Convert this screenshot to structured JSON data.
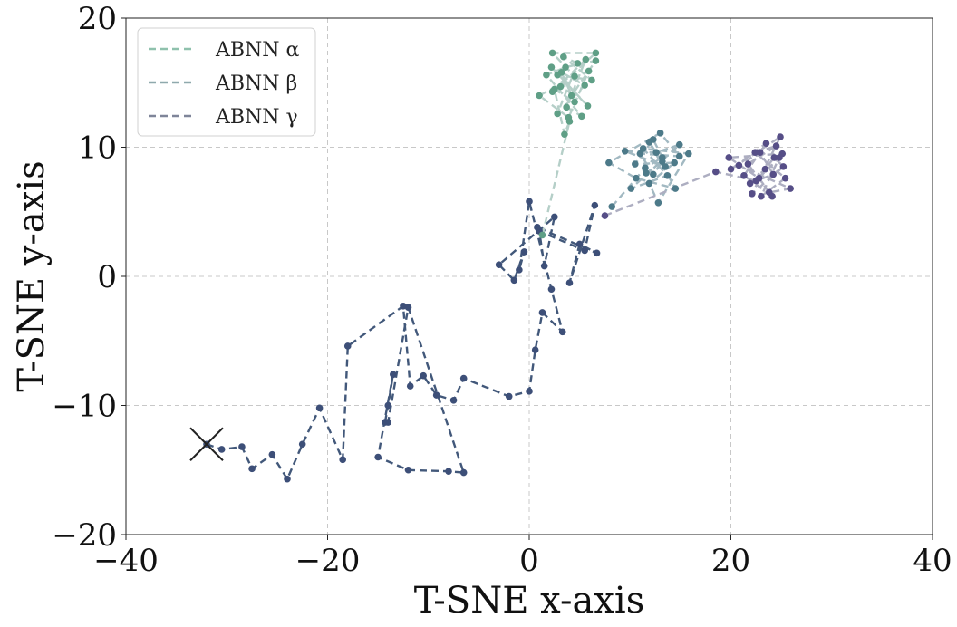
{
  "chart_data": {
    "type": "line",
    "xlabel": "T-SNE x-axis",
    "ylabel": "T-SNE y-axis",
    "xlim": [
      -40,
      40
    ],
    "ylim": [
      -20,
      20
    ],
    "xticks": [
      -40,
      -20,
      0,
      20,
      40
    ],
    "yticks": [
      -20,
      -10,
      0,
      10,
      20
    ],
    "xtick_labels": [
      "−40",
      "−20",
      "0",
      "20",
      "40"
    ],
    "ytick_labels": [
      "−20",
      "−10",
      "0",
      "10",
      "20"
    ],
    "grid": true,
    "legend_position": "top-left",
    "start_marker": {
      "x": -32,
      "y": -13
    },
    "legend": [
      {
        "label": "ABNN α",
        "color": "#8fc1ad"
      },
      {
        "label": "ABNN β",
        "color": "#8fa9ad"
      },
      {
        "label": "ABNN γ",
        "color": "#7f8599"
      }
    ],
    "paths": [
      {
        "line_color": "#42587a",
        "point_color": "#3d4f78",
        "points": [
          [
            -32,
            -13
          ],
          [
            -30.5,
            -13.4
          ],
          [
            -28.5,
            -13.2
          ],
          [
            -27.5,
            -14.9
          ],
          [
            -25.5,
            -13.8
          ],
          [
            -24,
            -15.7
          ],
          [
            -22.5,
            -13
          ],
          [
            -20.8,
            -10.2
          ],
          [
            -18.5,
            -14.2
          ],
          [
            -18,
            -5.4
          ],
          [
            -12.5,
            -2.3
          ],
          [
            -11.8,
            -8.5
          ],
          [
            -10.5,
            -7.7
          ],
          [
            -9.2,
            -9.2
          ],
          [
            -7.5,
            -9.6
          ],
          [
            -6.5,
            -7.9
          ],
          [
            -2,
            -9.3
          ],
          [
            0,
            -8.9
          ],
          [
            0.6,
            -5.7
          ],
          [
            1.3,
            -2.8
          ],
          [
            3.3,
            -4.3
          ],
          [
            2.2,
            -1
          ],
          [
            0,
            5.8
          ],
          [
            -1,
            0.5
          ],
          [
            -0.5,
            1.9
          ],
          [
            -1.5,
            -0.3
          ],
          [
            -3,
            0.9
          ],
          [
            2.5,
            4.6
          ],
          [
            1.5,
            0.8
          ],
          [
            1,
            3.5
          ],
          [
            5.5,
            2
          ],
          [
            6.5,
            5.5
          ],
          [
            4,
            -0.5
          ],
          [
            5,
            2.5
          ],
          [
            6.7,
            1.8
          ],
          [
            0.8,
            3.8
          ]
        ]
      },
      {
        "line_color": "#42587a",
        "point_color": "#3d4f78",
        "points": [
          [
            -14.3,
            -11.3
          ],
          [
            -14,
            -10
          ],
          [
            -13.5,
            -7.6
          ],
          [
            -15,
            -14
          ],
          [
            -12,
            -15
          ],
          [
            -8,
            -15.1
          ],
          [
            -6.5,
            -15.2
          ],
          [
            -12,
            -2.4
          ],
          [
            -14,
            -11.3
          ]
        ]
      },
      {
        "line_color": "#b5cfc8",
        "point_color": "#5f9f86",
        "points": [
          [
            1.3,
            3.2
          ],
          [
            4,
            12
          ],
          [
            3.5,
            11
          ],
          [
            2.5,
            14.5
          ],
          [
            4.5,
            13.5
          ],
          [
            3.2,
            15.8
          ],
          [
            5.5,
            14.8
          ],
          [
            2.8,
            12.6
          ],
          [
            4.8,
            16.5
          ],
          [
            3.4,
            17
          ],
          [
            6.2,
            15.2
          ],
          [
            2.8,
            15.6
          ],
          [
            5.8,
            13.2
          ],
          [
            2.2,
            16.2
          ],
          [
            4.2,
            14
          ],
          [
            6.6,
            16.7
          ],
          [
            3.6,
            16.2
          ],
          [
            1.7,
            15.6
          ],
          [
            5.2,
            12.4
          ],
          [
            3.7,
            13.1
          ],
          [
            5.6,
            16.8
          ],
          [
            2.3,
            14.3
          ],
          [
            6.6,
            17.3
          ],
          [
            2.3,
            17.3
          ],
          [
            4.5,
            15.5
          ],
          [
            1,
            14
          ],
          [
            3.9,
            12.3
          ],
          [
            5.9,
            15.9
          ],
          [
            3.1,
            14.7
          ]
        ]
      },
      {
        "line_color": "#a2b9c2",
        "point_color": "#4d7a89",
        "points": [
          [
            8.2,
            5.4
          ],
          [
            11.5,
            8.4
          ],
          [
            13.2,
            9.2
          ],
          [
            12.3,
            10.6
          ],
          [
            10.5,
            8.7
          ],
          [
            14.4,
            8.8
          ],
          [
            11.9,
            7.2
          ],
          [
            12.8,
            5.7
          ],
          [
            15.8,
            9.5
          ],
          [
            11.3,
            9.9
          ],
          [
            13.7,
            7.8
          ],
          [
            10.1,
            6.8
          ],
          [
            14.9,
            10.2
          ],
          [
            12.6,
            9.6
          ],
          [
            9.5,
            9.7
          ],
          [
            13.5,
            8.5
          ],
          [
            11.9,
            10.4
          ],
          [
            14.5,
            6.8
          ],
          [
            10.6,
            7.6
          ],
          [
            7.9,
            8.8
          ],
          [
            13,
            11.1
          ],
          [
            14.9,
            9.3
          ],
          [
            11,
            9.5
          ],
          [
            12.3,
            7.9
          ],
          [
            13.2,
            8.9
          ],
          [
            11.6,
            8
          ]
        ]
      },
      {
        "line_color": "#adaec1",
        "point_color": "#564e87",
        "points": [
          [
            7.5,
            4.7
          ],
          [
            18.5,
            8.1
          ],
          [
            22.5,
            7.4
          ],
          [
            24.8,
            9.2
          ],
          [
            23,
            6.2
          ],
          [
            25.4,
            7.6
          ],
          [
            22.4,
            9.6
          ],
          [
            24.5,
            10.1
          ],
          [
            21.7,
            8.7
          ],
          [
            23.8,
            6.5
          ],
          [
            25.9,
            6.8
          ],
          [
            20.8,
            8.6
          ],
          [
            22.9,
            9.6
          ],
          [
            24.2,
            7.9
          ],
          [
            21.9,
            7.2
          ],
          [
            23.4,
            8.3
          ],
          [
            24.3,
            9.2
          ],
          [
            25.2,
            8.5
          ],
          [
            22.1,
            6.4
          ],
          [
            24.9,
            10.8
          ],
          [
            20,
            8.3
          ],
          [
            23.5,
            10.3
          ],
          [
            21.3,
            7.8
          ],
          [
            24.1,
            6.2
          ],
          [
            22.8,
            7.6
          ],
          [
            19.8,
            9.2
          ],
          [
            25.1,
            9.5
          ]
        ]
      }
    ]
  }
}
